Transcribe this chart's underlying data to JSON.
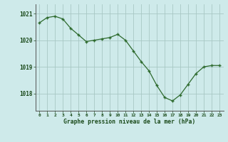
{
  "x": [
    0,
    1,
    2,
    3,
    4,
    5,
    6,
    7,
    8,
    9,
    10,
    11,
    12,
    13,
    14,
    15,
    16,
    17,
    18,
    19,
    20,
    21,
    22,
    23
  ],
  "y": [
    1020.65,
    1020.85,
    1020.9,
    1020.8,
    1020.45,
    1020.2,
    1019.95,
    1020.0,
    1020.05,
    1020.1,
    1020.22,
    1020.0,
    1019.6,
    1019.2,
    1018.85,
    1018.3,
    1017.85,
    1017.72,
    1017.95,
    1018.35,
    1018.75,
    1019.0,
    1019.05,
    1019.05
  ],
  "line_color": "#2d6a2d",
  "marker": "+",
  "bg_color": "#ceeaea",
  "grid_color": "#a8c8c4",
  "xlabel": "Graphe pression niveau de la mer (hPa)",
  "xlabel_color": "#1a4a1a",
  "yticks": [
    1018,
    1019,
    1020,
    1021
  ],
  "xticks": [
    0,
    1,
    2,
    3,
    4,
    5,
    6,
    7,
    8,
    9,
    10,
    11,
    12,
    13,
    14,
    15,
    16,
    17,
    18,
    19,
    20,
    21,
    22,
    23
  ],
  "ylim": [
    1017.35,
    1021.35
  ],
  "xlim": [
    -0.5,
    23.5
  ]
}
